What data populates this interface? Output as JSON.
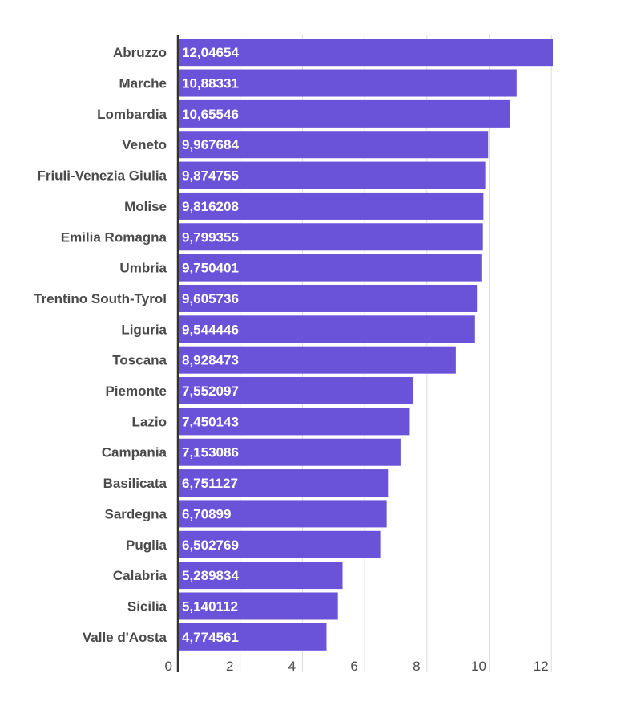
{
  "chart_data": {
    "type": "bar",
    "orientation": "horizontal",
    "categories": [
      "Abruzzo",
      "Marche",
      "Lombardia",
      "Veneto",
      "Friuli-Venezia Giulia",
      "Molise",
      "Emilia Romagna",
      "Umbria",
      "Trentino South-Tyrol",
      "Liguria",
      "Toscana",
      "Piemonte",
      "Lazio",
      "Campania",
      "Basilicata",
      "Sardegna",
      "Puglia",
      "Calabria",
      "Sicilia",
      "Valle d'Aosta"
    ],
    "values": [
      12.04654,
      10.88331,
      10.65546,
      9.967684,
      9.874755,
      9.816208,
      9.799355,
      9.750401,
      9.605736,
      9.544446,
      8.928473,
      7.552097,
      7.450143,
      7.153086,
      6.751127,
      6.70899,
      6.502769,
      5.289834,
      5.140112,
      4.774561
    ],
    "value_labels": [
      "12,04654",
      "10,88331",
      "10,65546",
      "9,967684",
      "9,874755",
      "9,816208",
      "9,799355",
      "9,750401",
      "9,605736",
      "9,544446",
      "8,928473",
      "7,552097",
      "7,450143",
      "7,153086",
      "6,751127",
      "6,70899",
      "6,502769",
      "5,289834",
      "5,140112",
      "4,774561"
    ],
    "xticks": [
      0,
      2,
      4,
      6,
      8,
      10,
      12
    ],
    "xlim": [
      0,
      12.5
    ],
    "grid": true,
    "bar_color": "#6a52d9",
    "gridline_color": "#dddddd",
    "axis_color": "#333333",
    "title": "",
    "xlabel": "",
    "ylabel": ""
  }
}
